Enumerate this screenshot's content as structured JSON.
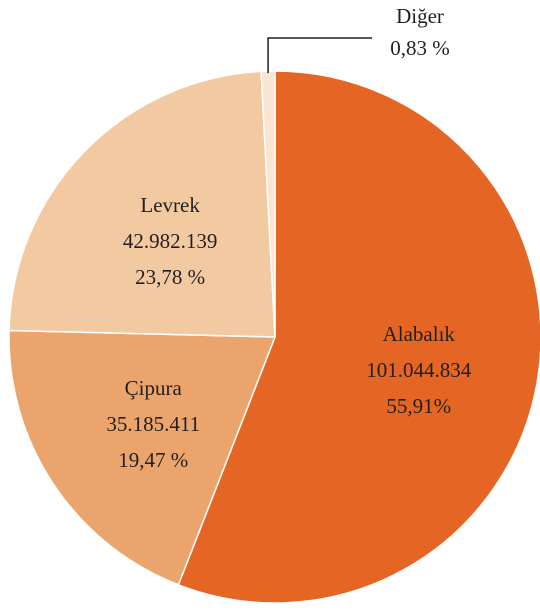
{
  "chart_data": {
    "type": "pie",
    "categories": [
      "Alabalık",
      "Çipura",
      "Levrek",
      "Diğer"
    ],
    "amount_labels": [
      "101.044.834",
      "35.185.411",
      "42.982.139",
      null
    ],
    "values": [
      55.91,
      19.47,
      23.78,
      0.83
    ],
    "value_labels": [
      "55,91%",
      "19,47 %",
      "23,78 %",
      "0,83 %"
    ],
    "colors": [
      "#e56524",
      "#eba56c",
      "#f3c9a1",
      "#f8e6d3"
    ]
  }
}
